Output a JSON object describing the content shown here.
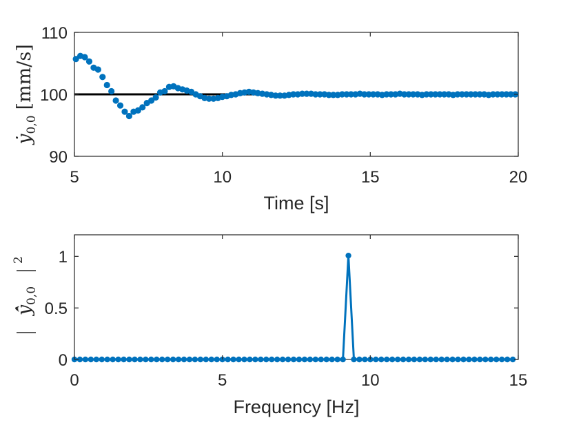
{
  "chart_data": [
    {
      "type": "scatter",
      "xlabel": "Time [s]",
      "ylabel": {
        "base": "ẏ",
        "subscript": "0,0",
        "unit": "[mm/s]"
      },
      "xlim": [
        5,
        20
      ],
      "ylim": [
        90,
        110
      ],
      "xticks": [
        "5",
        "10",
        "15",
        "20"
      ],
      "yticks": [
        "90",
        "100",
        "110"
      ],
      "grid": false,
      "series": [
        {
          "color": "#0072BD",
          "marker": "circle",
          "x": [
            5.05,
            5.2,
            5.35,
            5.5,
            5.65,
            5.8,
            5.95,
            6.1,
            6.25,
            6.4,
            6.55,
            6.7,
            6.85,
            7.0,
            7.15,
            7.3,
            7.45,
            7.6,
            7.75,
            7.9,
            8.05,
            8.2,
            8.35,
            8.5,
            8.65,
            8.8,
            8.95,
            9.1,
            9.25,
            9.4,
            9.55,
            9.7,
            9.85,
            10.0,
            10.15,
            10.3,
            10.45,
            10.6,
            10.75,
            10.9,
            11.05,
            11.2,
            11.35,
            11.5,
            11.65,
            11.8,
            11.95,
            12.1,
            12.25,
            12.4,
            12.55,
            12.7,
            12.85,
            13.0,
            13.15,
            13.3,
            13.45,
            13.6,
            13.75,
            13.9,
            14.05,
            14.2,
            14.35,
            14.5,
            14.65,
            14.8,
            14.95,
            15.1,
            15.25,
            15.4,
            15.55,
            15.7,
            15.85,
            16.0,
            16.15,
            16.3,
            16.45,
            16.6,
            16.75,
            16.9,
            17.05,
            17.2,
            17.35,
            17.5,
            17.65,
            17.8,
            17.95,
            18.1,
            18.25,
            18.4,
            18.55,
            18.7,
            18.85,
            19.0,
            19.15,
            19.3,
            19.45,
            19.6,
            19.75,
            19.9
          ],
          "y": [
            105.7,
            106.2,
            106.0,
            105.3,
            104.3,
            104.0,
            102.8,
            101.5,
            100.5,
            99.0,
            98.2,
            97.2,
            96.5,
            97.2,
            97.4,
            97.9,
            98.6,
            99.0,
            99.5,
            100.3,
            100.5,
            101.2,
            101.3,
            101.0,
            100.8,
            100.6,
            100.4,
            100.0,
            99.7,
            99.4,
            99.3,
            99.3,
            99.4,
            99.6,
            99.7,
            99.9,
            100.0,
            100.2,
            100.3,
            100.4,
            100.3,
            100.2,
            100.1,
            100.0,
            99.9,
            99.8,
            99.8,
            99.8,
            99.9,
            100.0,
            100.0,
            100.1,
            100.1,
            100.1,
            100.0,
            100.0,
            100.0,
            99.9,
            99.9,
            99.9,
            100.0,
            100.0,
            100.0,
            100.0,
            100.1,
            100.0,
            100.0,
            100.0,
            100.0,
            99.9,
            100.0,
            100.0,
            100.0,
            100.1,
            100.0,
            100.0,
            100.0,
            100.0,
            99.9,
            100.0,
            100.0,
            100.0,
            100.0,
            100.0,
            100.0,
            99.9,
            100.0,
            100.0,
            100.0,
            100.0,
            100.0,
            100.0,
            100.0,
            99.9,
            100.0,
            100.0,
            100.0,
            100.0,
            100.0,
            100.0
          ]
        },
        {
          "type": "reference-line",
          "color": "#000000",
          "y": 100
        }
      ]
    },
    {
      "type": "line",
      "xlabel": "Frequency [Hz]",
      "ylabel": {
        "base": "ŷ̇",
        "subscript": "0,0",
        "exponent": "2"
      },
      "xlim": [
        0,
        15
      ],
      "ylim": [
        0,
        1.2
      ],
      "xticks": [
        "0",
        "5",
        "10",
        "15"
      ],
      "yticks": [
        "0",
        "0.5",
        "1"
      ],
      "grid": false,
      "series": [
        {
          "color": "#0072BD",
          "marker": "circle",
          "x_start": 0,
          "x_step": 0.1852,
          "count": 81,
          "peak_index": 50,
          "peak_value": 1,
          "baseline_value": 0
        }
      ]
    }
  ]
}
